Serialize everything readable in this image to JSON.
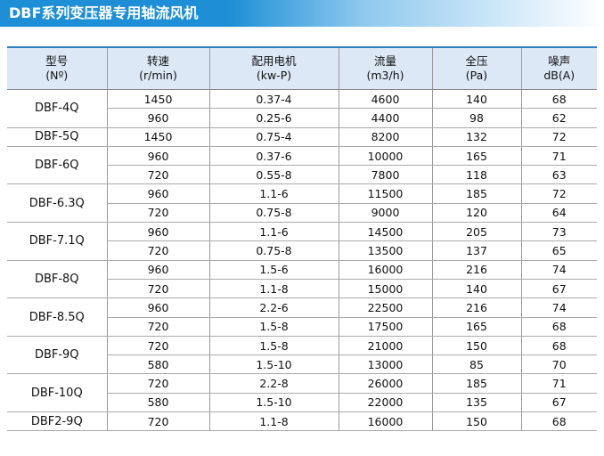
{
  "title": "DBF系列变压器专用轴流风机",
  "table": {
    "header": [
      [
        "型号",
        "(Nº)"
      ],
      [
        "转速",
        "(r/min)"
      ],
      [
        "配用电机",
        "(kw-P)"
      ],
      [
        "流量",
        "(m3/h)"
      ],
      [
        "全压",
        "(Pa)"
      ],
      [
        "噪声",
        "dB(A)"
      ]
    ],
    "groups": [
      {
        "model": "DBF-4Q",
        "rows": [
          [
            1450,
            "0.37-4",
            4600,
            140,
            68
          ],
          [
            960,
            "0.25-6",
            4400,
            98,
            62
          ]
        ]
      },
      {
        "model": "DBF-5Q",
        "rows": [
          [
            1450,
            "0.75-4",
            8200,
            132,
            72
          ]
        ]
      },
      {
        "model": "DBF-6Q",
        "rows": [
          [
            960,
            "0.37-6",
            10000,
            165,
            71
          ],
          [
            720,
            "0.55-8",
            7800,
            118,
            63
          ]
        ]
      },
      {
        "model": "DBF-6.3Q",
        "rows": [
          [
            960,
            "1.1-6",
            11500,
            185,
            72
          ],
          [
            720,
            "0.75-8",
            9000,
            120,
            64
          ]
        ]
      },
      {
        "model": "DBF-7.1Q",
        "rows": [
          [
            960,
            "1.1-6",
            14500,
            205,
            73
          ],
          [
            720,
            "0.75-8",
            13500,
            137,
            65
          ]
        ]
      },
      {
        "model": "DBF-8Q",
        "rows": [
          [
            960,
            "1.5-6",
            16000,
            216,
            74
          ],
          [
            720,
            "1.1-8",
            15000,
            140,
            67
          ]
        ]
      },
      {
        "model": "DBF-8.5Q",
        "rows": [
          [
            960,
            "2.2-6",
            22500,
            216,
            74
          ],
          [
            720,
            "1.5-8",
            17500,
            165,
            68
          ]
        ]
      },
      {
        "model": "DBF-9Q",
        "rows": [
          [
            720,
            "1.5-8",
            21000,
            150,
            68
          ],
          [
            580,
            "1.5-10",
            13000,
            85,
            70
          ]
        ]
      },
      {
        "model": "DBF-10Q",
        "rows": [
          [
            720,
            "2.2-8",
            26000,
            185,
            71
          ],
          [
            580,
            "1.5-10",
            22000,
            135,
            67
          ]
        ]
      },
      {
        "model": "DBF2-9Q",
        "rows": [
          [
            720,
            "1.1-8",
            16000,
            150,
            68
          ]
        ]
      }
    ]
  }
}
